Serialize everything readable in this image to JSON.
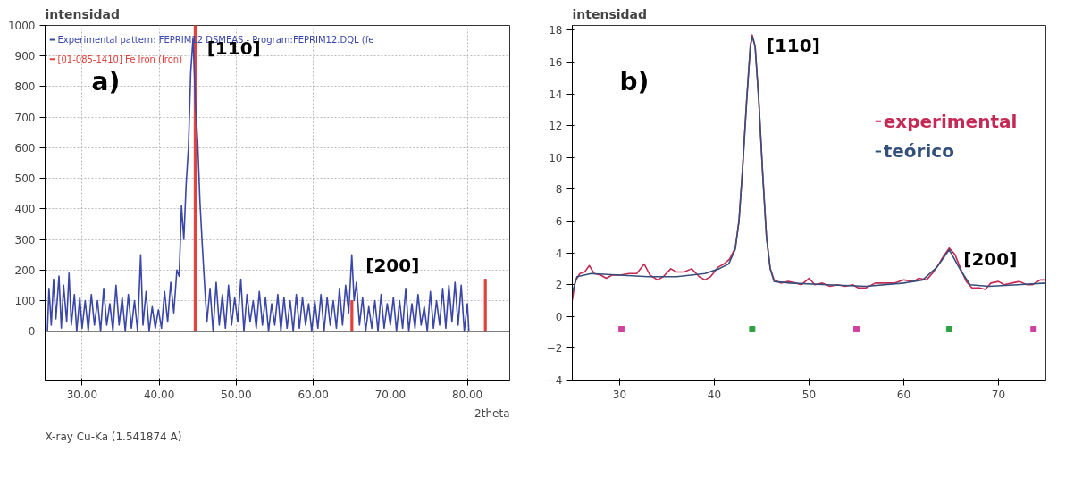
{
  "chart_data": [
    {
      "type": "line",
      "ylabel": "intensidad",
      "xlabel": "2theta",
      "xlim": [
        25.2,
        85.5
      ],
      "ylim": [
        -160,
        1000
      ],
      "xticks": [
        {
          "value": 30,
          "label": "30.00"
        },
        {
          "value": 40,
          "label": "40.00"
        },
        {
          "value": 50,
          "label": "50.00"
        },
        {
          "value": 60,
          "label": "60.00"
        },
        {
          "value": 70,
          "label": "70.00"
        },
        {
          "value": 80,
          "label": "80.00"
        }
      ],
      "yticks": [
        0,
        100,
        200,
        300,
        400,
        500,
        600,
        700,
        800,
        900,
        1000
      ],
      "grid": true,
      "legend": "top left",
      "marker": "none",
      "annotations": [
        "a)",
        "X-ray Cu-Ka (1.541874 A)",
        {
          "text": "[110]",
          "x": 44.4,
          "y": 960
        },
        {
          "text": "[200]",
          "x": 65,
          "y": 250
        }
      ],
      "ref_lines": [
        {
          "axis": "y",
          "value": 0,
          "color": "#000000"
        }
      ],
      "series": [
        {
          "name": "Experimental pattern: FEPRIM12 DSMEAS - Program:FEPRIM12.DQL (fe",
          "color": "#3a46a8",
          "x": [
            25.5,
            25.7,
            26,
            26.3,
            26.6,
            27,
            27.3,
            27.6,
            28,
            28.3,
            28.6,
            29,
            29.3,
            29.7,
            30,
            30.4,
            30.8,
            31.2,
            31.6,
            32,
            32.4,
            32.8,
            33.2,
            33.6,
            34,
            34.4,
            34.8,
            35.2,
            35.6,
            36,
            36.4,
            36.8,
            37.2,
            37.6,
            37.9,
            38.3,
            38.7,
            39.1,
            39.5,
            39.9,
            40.3,
            40.7,
            41.1,
            41.5,
            41.9,
            42.3,
            42.6,
            42.9,
            43.2,
            43.5,
            43.8,
            44.1,
            44.4,
            44.7,
            45,
            45.3,
            45.6,
            45.9,
            46.2,
            46.6,
            47,
            47.4,
            47.8,
            48.2,
            48.6,
            49,
            49.4,
            49.8,
            50.2,
            50.6,
            51,
            51.4,
            51.8,
            52.2,
            52.6,
            53,
            53.4,
            53.8,
            54.2,
            54.6,
            55,
            55.4,
            55.8,
            56.2,
            56.6,
            57,
            57.4,
            57.8,
            58.2,
            58.6,
            59,
            59.4,
            59.8,
            60.2,
            60.6,
            61,
            61.4,
            61.8,
            62.2,
            62.6,
            63,
            63.4,
            63.8,
            64.2,
            64.6,
            65,
            65.3,
            65.6,
            66,
            66.4,
            66.8,
            67.2,
            67.6,
            68,
            68.4,
            68.8,
            69.2,
            69.6,
            70,
            70.4,
            70.8,
            71.2,
            71.6,
            72,
            72.4,
            72.8,
            73.2,
            73.6,
            74,
            74.4,
            74.8,
            75.2,
            75.6,
            76,
            76.4,
            76.8,
            77.2,
            77.6,
            78,
            78.4,
            78.8,
            79.2,
            79.6,
            80,
            80.2
          ],
          "values": [
            0,
            140,
            20,
            170,
            40,
            180,
            10,
            150,
            30,
            190,
            20,
            120,
            0,
            110,
            10,
            100,
            0,
            120,
            20,
            100,
            0,
            140,
            20,
            90,
            0,
            150,
            20,
            110,
            0,
            120,
            10,
            100,
            0,
            250,
            20,
            130,
            0,
            80,
            10,
            70,
            10,
            130,
            30,
            160,
            60,
            200,
            180,
            410,
            300,
            480,
            600,
            850,
            960,
            750,
            620,
            420,
            280,
            150,
            30,
            140,
            0,
            160,
            20,
            120,
            10,
            150,
            20,
            110,
            30,
            170,
            0,
            120,
            30,
            100,
            10,
            130,
            20,
            110,
            0,
            90,
            20,
            120,
            0,
            110,
            10,
            100,
            0,
            120,
            10,
            110,
            20,
            90,
            0,
            100,
            10,
            120,
            0,
            110,
            20,
            100,
            10,
            140,
            20,
            150,
            60,
            250,
            100,
            160,
            20,
            110,
            0,
            80,
            10,
            100,
            0,
            120,
            10,
            90,
            20,
            110,
            0,
            100,
            10,
            140,
            0,
            90,
            10,
            120,
            20,
            80,
            0,
            130,
            10,
            100,
            20,
            140,
            10,
            150,
            30,
            160,
            20,
            150,
            0,
            90,
            0
          ]
        },
        {
          "name": "[01-085-1410] Fe Iron (Iron)",
          "type": "bar",
          "color": "#e0403c",
          "x": [
            44.67,
            65.02,
            82.33
          ],
          "values": [
            1000,
            100,
            170
          ]
        }
      ]
    },
    {
      "type": "line",
      "ylabel": "intensidad",
      "xlim": [
        25,
        75
      ],
      "ylim": [
        -4,
        18.3
      ],
      "xticks": [
        30,
        40,
        50,
        60,
        70
      ],
      "yticks": [
        -4,
        -2,
        0,
        2,
        4,
        6,
        8,
        10,
        12,
        14,
        16,
        18
      ],
      "grid": false,
      "legend": "top right",
      "marker": "none",
      "annotations": [
        "b)",
        {
          "text": "[110]",
          "x": 44,
          "y": 17.7
        },
        {
          "text": "[200]",
          "x": 64.8,
          "y": 4.3
        }
      ],
      "series": [
        {
          "name": "experimental",
          "color": "#c42a55",
          "x": [
            25,
            25.3,
            25.8,
            26.3,
            26.8,
            27.3,
            28,
            28.6,
            29.2,
            30,
            31,
            31.8,
            32.6,
            33.2,
            34,
            34.6,
            35.4,
            36,
            36.8,
            37.6,
            38.4,
            39,
            39.6,
            40.4,
            41,
            41.6,
            42.2,
            42.6,
            43,
            43.4,
            43.8,
            44,
            44.3,
            44.7,
            45.1,
            45.5,
            45.9,
            46.3,
            47,
            47.8,
            48.6,
            49.2,
            50,
            50.6,
            51.4,
            52.2,
            53,
            53.8,
            54.6,
            55.2,
            56,
            57,
            58,
            59,
            60,
            61,
            61.6,
            62.4,
            63,
            63.6,
            64.2,
            64.8,
            65.4,
            66,
            66.6,
            67.2,
            68,
            68.6,
            69.2,
            70,
            70.6,
            71.4,
            72.2,
            73,
            73.6,
            74.4,
            75
          ],
          "values": [
            1.0,
            2.2,
            2.7,
            2.8,
            3.2,
            2.7,
            2.6,
            2.4,
            2.6,
            2.6,
            2.7,
            2.7,
            3.3,
            2.6,
            2.3,
            2.5,
            3.0,
            2.8,
            2.8,
            3.0,
            2.5,
            2.3,
            2.5,
            3.1,
            3.3,
            3.6,
            4.3,
            6.0,
            9.5,
            13.5,
            17.0,
            17.7,
            17.0,
            13.5,
            9.0,
            5.0,
            3.0,
            2.3,
            2.1,
            2.2,
            2.1,
            2.0,
            2.4,
            2.0,
            2.1,
            1.9,
            2.0,
            1.9,
            2.0,
            1.8,
            1.8,
            2.1,
            2.1,
            2.1,
            2.3,
            2.2,
            2.4,
            2.3,
            2.7,
            3.2,
            3.8,
            4.3,
            3.9,
            3.0,
            2.2,
            1.8,
            1.8,
            1.7,
            2.1,
            2.2,
            2.0,
            2.1,
            2.2,
            2.0,
            2.0,
            2.3,
            2.3
          ]
        },
        {
          "name": "teórico",
          "color": "#34507a",
          "x": [
            25,
            25.5,
            27,
            30,
            33,
            36,
            39,
            40.5,
            41.5,
            42.2,
            42.6,
            43,
            43.4,
            43.8,
            44,
            44.3,
            44.7,
            45.1,
            45.5,
            45.9,
            46.3,
            48,
            52,
            56,
            60,
            62,
            63.5,
            64.8,
            66,
            67,
            69,
            72,
            75
          ],
          "values": [
            1.5,
            2.5,
            2.7,
            2.6,
            2.5,
            2.5,
            2.7,
            3.0,
            3.3,
            4.2,
            6.0,
            9.5,
            13.5,
            17.0,
            17.6,
            17.0,
            13.5,
            9.0,
            5.0,
            3.0,
            2.2,
            2.1,
            2.0,
            1.9,
            2.1,
            2.3,
            3.1,
            4.2,
            2.9,
            2.0,
            1.9,
            2.0,
            2.1
          ]
        },
        {
          "type": "scatter",
          "marker": "square",
          "color": "#d040a0",
          "x": [
            30.2,
            55,
            73.7
          ],
          "values": [
            -0.8,
            -0.8,
            -0.8
          ]
        },
        {
          "type": "scatter",
          "marker": "square",
          "color": "#30a040",
          "x": [
            44,
            64.8
          ],
          "values": [
            -0.8,
            -0.8
          ]
        }
      ]
    }
  ]
}
